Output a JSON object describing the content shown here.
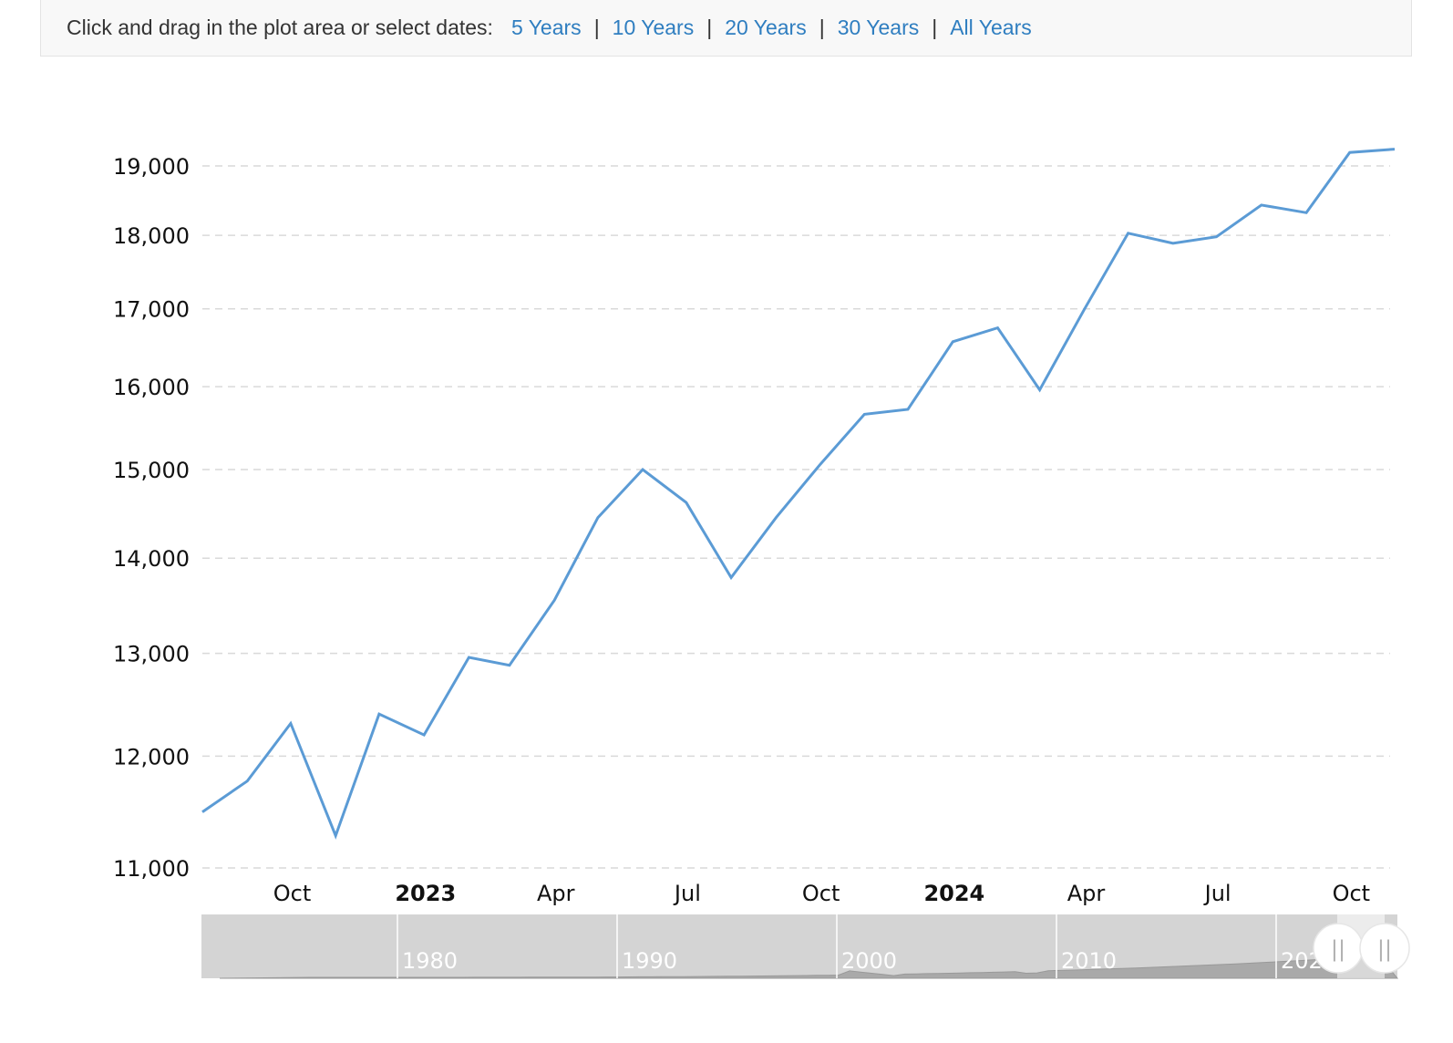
{
  "range_selector": {
    "prompt": "Click and drag in the plot area or select dates:",
    "options": [
      "5 Years",
      "10 Years",
      "20 Years",
      "30 Years",
      "All Years"
    ],
    "separator": "|"
  },
  "colors": {
    "line": "#5b9bd5",
    "grid": "#d9d9d9",
    "link": "#2f7ec0",
    "navigator_bg": "#d4d4d4",
    "navigator_series": "#a9a9a9"
  },
  "chart_data": {
    "type": "line",
    "title": "",
    "xlabel": "",
    "ylabel": "",
    "grid": true,
    "y_scale": "log",
    "ylim": [
      11000,
      19300
    ],
    "y_ticks": [
      11000,
      12000,
      13000,
      14000,
      15000,
      16000,
      17000,
      18000,
      19000
    ],
    "y_tick_labels": [
      "11,000",
      "12,000",
      "13,000",
      "14,000",
      "15,000",
      "16,000",
      "17,000",
      "18,000",
      "19,000"
    ],
    "xlim": [
      "2022-07-31",
      "2024-10-31"
    ],
    "x_ticks": [
      {
        "date": "2022-10-01",
        "label": "Oct",
        "bold": false
      },
      {
        "date": "2023-01-01",
        "label": "2023",
        "bold": true
      },
      {
        "date": "2023-04-01",
        "label": "Apr",
        "bold": false
      },
      {
        "date": "2023-07-01",
        "label": "Jul",
        "bold": false
      },
      {
        "date": "2023-10-01",
        "label": "Oct",
        "bold": false
      },
      {
        "date": "2024-01-01",
        "label": "2024",
        "bold": true
      },
      {
        "date": "2024-04-01",
        "label": "Apr",
        "bold": false
      },
      {
        "date": "2024-07-01",
        "label": "Jul",
        "bold": false
      },
      {
        "date": "2024-10-01",
        "label": "Oct",
        "bold": false
      }
    ],
    "series": [
      {
        "x": [
          "2022-07-31",
          "2022-08-31",
          "2022-09-30",
          "2022-10-31",
          "2022-11-30",
          "2022-12-31",
          "2023-01-31",
          "2023-02-28",
          "2023-03-31",
          "2023-04-30",
          "2023-05-31",
          "2023-06-30",
          "2023-07-31",
          "2023-08-31",
          "2023-09-30",
          "2023-10-31",
          "2023-11-30",
          "2023-12-31",
          "2024-01-31",
          "2024-02-29",
          "2024-03-31",
          "2024-04-30",
          "2024-05-31",
          "2024-06-30",
          "2024-07-31",
          "2024-08-31",
          "2024-09-30",
          "2024-10-31"
        ],
        "values": [
          11490,
          11770,
          12310,
          11280,
          12400,
          12200,
          12960,
          12880,
          13550,
          14450,
          15000,
          14620,
          13790,
          14450,
          15050,
          15660,
          15720,
          16570,
          16750,
          15960,
          17000,
          18030,
          17890,
          17980,
          18430,
          18320,
          19200,
          19250
        ]
      }
    ]
  },
  "navigator": {
    "year_labels": [
      "1980",
      "1990",
      "2000",
      "2010",
      "2020"
    ],
    "handle_glyph": "||"
  }
}
